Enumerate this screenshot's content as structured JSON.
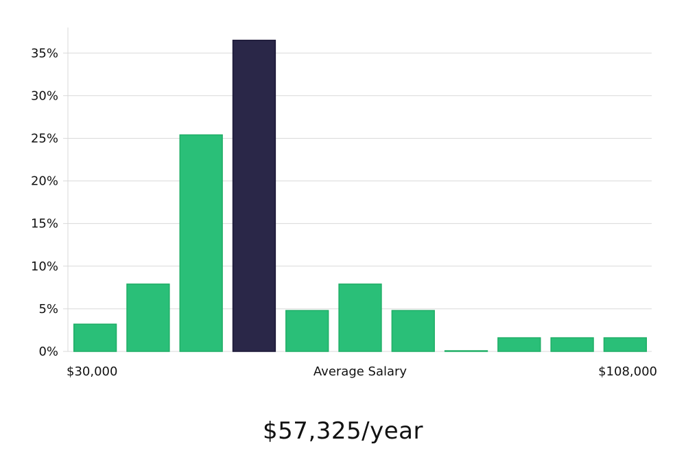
{
  "chart_data": {
    "type": "bar",
    "categories": [
      "1",
      "2",
      "3",
      "4",
      "5",
      "6",
      "7",
      "8",
      "9",
      "10",
      "11"
    ],
    "values": [
      3.2,
      7.9,
      25.4,
      36.5,
      4.8,
      7.9,
      4.8,
      0.0,
      1.6,
      1.6,
      1.6
    ],
    "highlight_index": 3,
    "ylim": [
      0,
      38
    ],
    "yticks": [
      0,
      5,
      10,
      15,
      20,
      25,
      30,
      35
    ],
    "ytick_format": "%",
    "grid": true,
    "x_left_label": "$30,000",
    "x_center_label": "Average Salary",
    "x_right_label": "$108,000",
    "colors": {
      "bar": "#2abf78",
      "bar_edge": "#1fae66",
      "highlight": "#2a2748",
      "highlight_edge": "#1a1736",
      "grid": "#d9d9d9"
    }
  },
  "salary_readout": "$57,325/year"
}
